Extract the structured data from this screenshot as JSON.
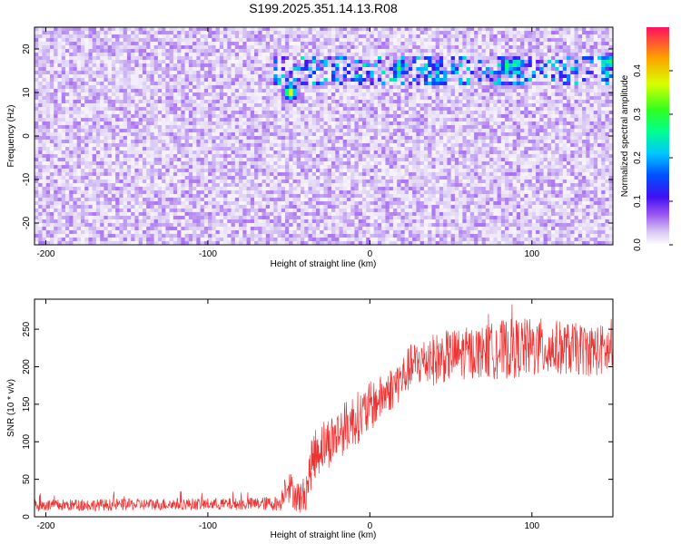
{
  "title": "S199.2025.351.14.13.R08",
  "chart_data": [
    {
      "type": "heatmap",
      "xlabel": "Height of straight line (km)",
      "ylabel": "Frequency (Hz)",
      "xlim": [
        -207,
        150
      ],
      "ylim": [
        -25,
        25
      ],
      "xticks": [
        -200,
        -100,
        0,
        100
      ],
      "yticks": [
        -20,
        -10,
        0,
        10,
        20
      ],
      "colorbar": {
        "label": "Normalized spectral amplitude",
        "range": [
          0.0,
          0.5
        ],
        "ticks": [
          0.0,
          0.1,
          0.2,
          0.3,
          0.4
        ],
        "tick_labels": [
          "0.0",
          "0.1",
          "0.2",
          "0.3",
          "0.4"
        ]
      },
      "features": [
        {
          "name": "noise background",
          "x_range": [
            -207,
            150
          ],
          "freq_range": [
            -25,
            25
          ],
          "amplitude": 0.03
        },
        {
          "name": "signal streak",
          "x_range": [
            -60,
            150
          ],
          "freq_range": [
            12,
            18
          ],
          "amplitude": 0.25
        },
        {
          "name": "peak",
          "x": -49,
          "freq": 10,
          "amplitude": 0.4
        },
        {
          "name": "peak",
          "x": 18,
          "freq": 15.5,
          "amplitude": 0.3
        },
        {
          "name": "peak",
          "x": 85,
          "freq": 16,
          "amplitude": 0.3
        },
        {
          "name": "peak",
          "x": 90,
          "freq": 16.5,
          "amplitude": 0.28
        },
        {
          "name": "peak",
          "x": 148,
          "freq": 17,
          "amplitude": 0.3
        }
      ]
    },
    {
      "type": "line",
      "xlabel": "Height of straight line (km)",
      "ylabel": "SNR (10 * v/v)",
      "xlim": [
        -207,
        150
      ],
      "ylim": [
        0,
        290
      ],
      "xticks": [
        -200,
        -100,
        0,
        100
      ],
      "yticks": [
        0,
        50,
        100,
        150,
        200,
        250
      ],
      "series": [
        {
          "name": "SNR",
          "color": "#ee3333",
          "x": [
            -207,
            -160,
            -120,
            -80,
            -55,
            -52,
            -48,
            -44,
            -40,
            -35,
            -30,
            -25,
            -20,
            -15,
            -10,
            -5,
            0,
            5,
            10,
            15,
            20,
            25,
            30,
            40,
            50,
            60,
            70,
            80,
            90,
            100,
            110,
            120,
            130,
            140,
            150
          ],
          "values": [
            15,
            16,
            17,
            17,
            18,
            45,
            35,
            25,
            30,
            80,
            95,
            100,
            110,
            120,
            130,
            135,
            145,
            155,
            165,
            175,
            185,
            200,
            205,
            210,
            215,
            218,
            220,
            222,
            225,
            225,
            225,
            225,
            223,
            222,
            222
          ],
          "noise_spread": [
            8,
            8,
            8,
            8,
            10,
            22,
            22,
            22,
            25,
            35,
            35,
            35,
            35,
            35,
            35,
            35,
            35,
            30,
            30,
            30,
            30,
            30,
            32,
            35,
            35,
            35,
            35,
            40,
            40,
            40,
            40,
            35,
            35,
            35,
            35
          ]
        }
      ]
    }
  ]
}
